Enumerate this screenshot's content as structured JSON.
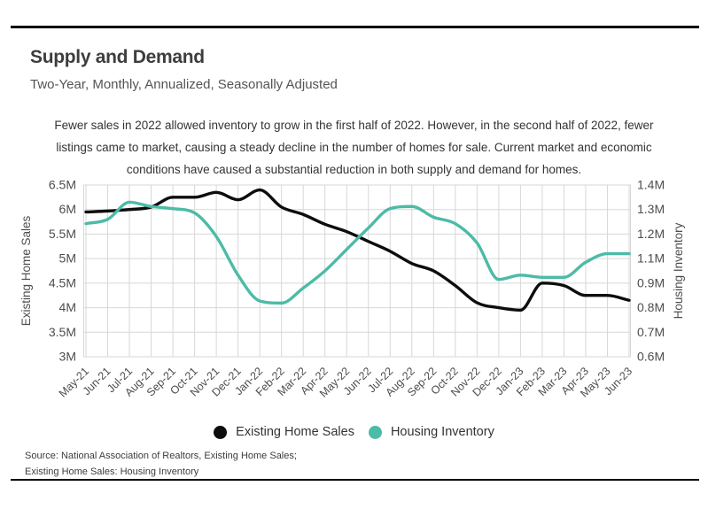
{
  "page": {
    "title": "Supply and Demand",
    "subtitle": "Two-Year, Monthly, Annualized, Seasonally Adjusted",
    "description_lines": [
      "Fewer sales in 2022 allowed inventory to grow in the first half of 2022. However, in the second half of 2022, fewer",
      "listings came to market, causing a steady decline in the number of homes for sale. Current market and economic",
      "conditions have caused a substantial reduction in both supply and demand for homes."
    ]
  },
  "chart_data": {
    "type": "line",
    "x": [
      "May-21",
      "Jun-21",
      "Jul-21",
      "Aug-21",
      "Sep-21",
      "Oct-21",
      "Nov-21",
      "Dec-21",
      "Jan-22",
      "Feb-22",
      "Mar-22",
      "Apr-22",
      "May-22",
      "Jun-22",
      "Jul-22",
      "Aug-22",
      "Sep-22",
      "Oct-22",
      "Nov-22",
      "Dec-22",
      "Jan-23",
      "Feb-23",
      "Mar-23",
      "Apr-23",
      "May-23",
      "Jun-23"
    ],
    "series": [
      {
        "name": "Existing Home Sales",
        "axis": "left",
        "color": "#0d0d0d",
        "units": "millions, SAAR",
        "values": [
          5.95,
          5.97,
          6.0,
          6.05,
          6.25,
          6.25,
          6.35,
          6.2,
          6.4,
          6.05,
          5.9,
          5.7,
          5.55,
          5.35,
          5.15,
          4.9,
          4.75,
          4.45,
          4.1,
          4.0,
          3.95,
          4.5,
          4.45,
          4.25,
          4.25,
          4.15
        ]
      },
      {
        "name": "Housing Inventory",
        "axis": "right",
        "color": "#4CBBA7",
        "units": "millions",
        "values": [
          1.22,
          1.24,
          1.32,
          1.3,
          1.29,
          1.27,
          1.16,
          0.98,
          0.86,
          0.85,
          0.92,
          1.0,
          1.1,
          1.2,
          1.29,
          1.3,
          1.25,
          1.22,
          1.13,
          0.96,
          0.98,
          0.97,
          0.97,
          1.04,
          1.08,
          1.08
        ]
      }
    ],
    "left_axis": {
      "label": "Existing Home Sales",
      "ticks": [
        "6.5M",
        "6M",
        "5.5M",
        "5M",
        "4.5M",
        "4M",
        "3.5M",
        "3M"
      ],
      "range": [
        3,
        6.5
      ]
    },
    "right_axis": {
      "label": "Housing Inventory",
      "ticks": [
        "1.4M",
        "1.3M",
        "1.2M",
        "1.1M",
        "0.9M",
        "0.8M",
        "0.7M",
        "0.6M"
      ],
      "range": [
        0.6,
        1.4
      ]
    },
    "grid": true,
    "legend_position": "bottom",
    "title": "Supply and Demand",
    "subtitle": "Two-Year, Monthly, Annualized, Seasonally Adjusted"
  },
  "source": {
    "line1": "Source:  National Association of Realtors, Existing Home Sales;",
    "line2": "Existing Home Sales: Housing Inventory"
  },
  "colors": {
    "sales_line": "#0d0d0d",
    "inventory_line": "#4CBBA7",
    "gridline": "#d7d7d7",
    "tick_text": "#4d4d4d"
  }
}
